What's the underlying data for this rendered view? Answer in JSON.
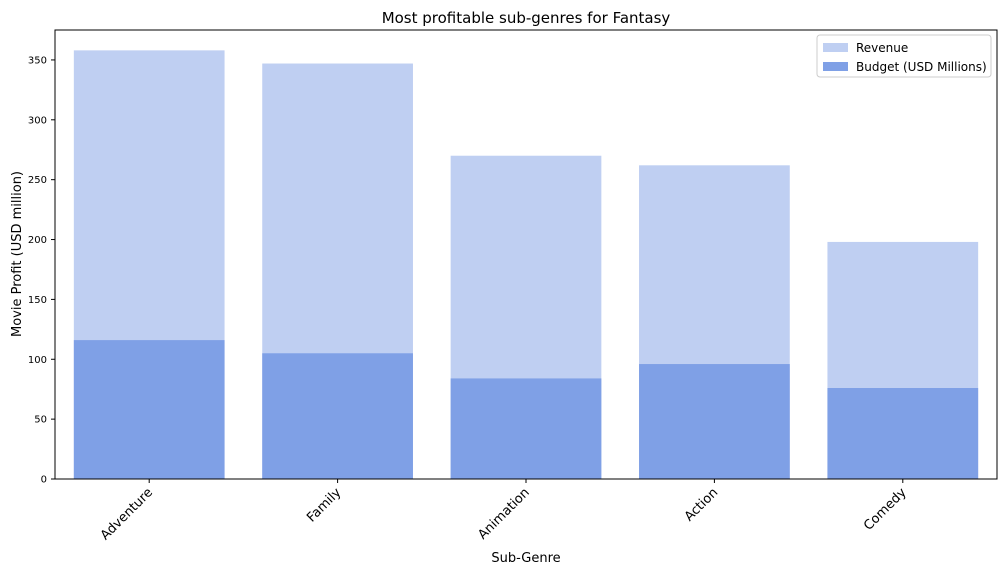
{
  "chart_data": {
    "type": "bar",
    "title": "Most profitable sub-genres for Fantasy",
    "xlabel": "Sub-Genre",
    "ylabel": "Movie Profit (USD million)",
    "categories": [
      "Adventure",
      "Family",
      "Animation",
      "Action",
      "Comedy"
    ],
    "series": [
      {
        "name": "Revenue",
        "values": [
          358,
          347,
          270,
          262,
          198
        ],
        "color": "#bfcff2"
      },
      {
        "name": "Budget (USD Millions)",
        "values": [
          116,
          105,
          84,
          96,
          76
        ],
        "color": "#7fa0e6"
      }
    ],
    "ylim": [
      0,
      375
    ],
    "yticks": [
      0,
      50,
      100,
      150,
      200,
      250,
      300,
      350
    ],
    "grid": false,
    "legend_position": "top-right",
    "overlaid": true
  }
}
